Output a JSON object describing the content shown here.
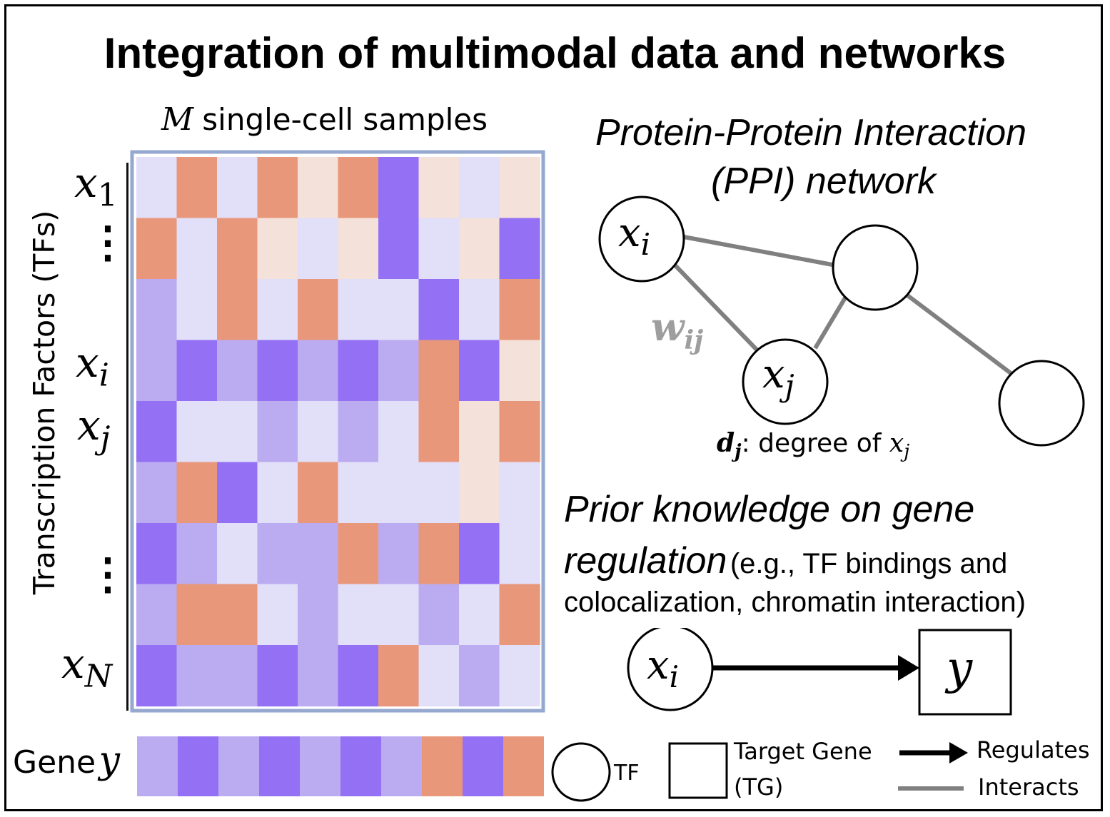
{
  "title": "Integration of multimodal data and networks",
  "matrix": {
    "header_var": "M",
    "header_text": "single-cell samples",
    "y_axis_label": "Transcription Factors (TFs)",
    "row_labels": [
      {
        "base": "x",
        "sub": "1"
      },
      {
        "base": "x",
        "sub": "i"
      },
      {
        "base": "x",
        "sub": "j"
      },
      {
        "base": "x",
        "sub": "N"
      }
    ],
    "ellipsis": "⋮",
    "colors": {
      "orange": "#E8977A",
      "peach": "#F4E1DA",
      "lavender": "#E2DFF8",
      "light_purple": "#BBABF0",
      "purple": "#9470F4"
    },
    "cells": [
      [
        "lavender",
        "orange",
        "lavender",
        "orange",
        "peach",
        "orange",
        "purple",
        "peach",
        "lavender",
        "peach"
      ],
      [
        "orange",
        "lavender",
        "orange",
        "peach",
        "lavender",
        "peach",
        "purple",
        "lavender",
        "peach",
        "purple"
      ],
      [
        "light_purple",
        "lavender",
        "orange",
        "lavender",
        "orange",
        "lavender",
        "lavender",
        "purple",
        "lavender",
        "orange"
      ],
      [
        "light_purple",
        "purple",
        "light_purple",
        "purple",
        "light_purple",
        "purple",
        "light_purple",
        "orange",
        "purple",
        "peach"
      ],
      [
        "purple",
        "lavender",
        "lavender",
        "light_purple",
        "lavender",
        "light_purple",
        "lavender",
        "orange",
        "peach",
        "orange"
      ],
      [
        "light_purple",
        "orange",
        "purple",
        "lavender",
        "orange",
        "lavender",
        "lavender",
        "lavender",
        "peach",
        "lavender"
      ],
      [
        "purple",
        "light_purple",
        "lavender",
        "light_purple",
        "light_purple",
        "orange",
        "light_purple",
        "orange",
        "purple",
        "lavender"
      ],
      [
        "light_purple",
        "orange",
        "orange",
        "lavender",
        "light_purple",
        "lavender",
        "lavender",
        "light_purple",
        "lavender",
        "orange"
      ],
      [
        "purple",
        "light_purple",
        "light_purple",
        "purple",
        "light_purple",
        "purple",
        "orange",
        "lavender",
        "light_purple",
        "lavender"
      ]
    ]
  },
  "gene_row": {
    "label_text": "Gene",
    "label_var": "y",
    "cells": [
      "light_purple",
      "purple",
      "light_purple",
      "purple",
      "light_purple",
      "purple",
      "light_purple",
      "orange",
      "purple",
      "orange"
    ]
  },
  "ppi": {
    "title_line1": "Protein-Protein Interaction",
    "title_line2": "(PPI) network",
    "node_i": {
      "base": "x",
      "sub": "i"
    },
    "node_j": {
      "base": "x",
      "sub": "j"
    },
    "weight": {
      "base": "w",
      "sub": "ij"
    },
    "degree": {
      "var": "d",
      "sub": "j",
      "text": ": degree of",
      "xbase": "x",
      "xsub": "j"
    },
    "edge_color": "#808080"
  },
  "prior": {
    "line1": "Prior knowledge on gene",
    "line2_ital": "regulation",
    "line2_rest": "(e.g., TF bindings and",
    "line3": "colocalization, chromatin interaction)",
    "tf_node": {
      "base": "x",
      "sub": "i"
    },
    "tg_node": "y"
  },
  "legend": {
    "tf": "TF",
    "tg_line1": "Target Gene",
    "tg_line2": "(TG)",
    "regulates": "Regulates",
    "interacts": "Interacts"
  }
}
